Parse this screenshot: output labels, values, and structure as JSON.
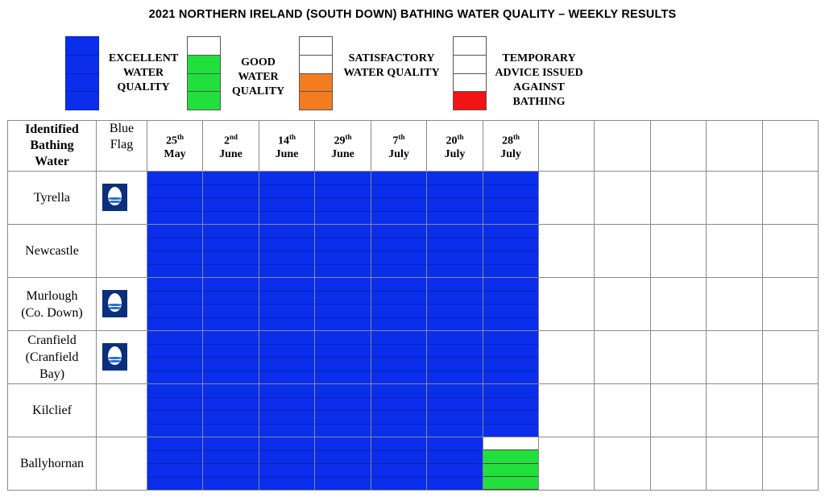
{
  "title": "2021 NORTHERN IRELAND (SOUTH DOWN) BATHING WATER QUALITY – WEEKLY RESULTS",
  "colors": {
    "excellent": "#0a2eea",
    "good": "#22e03c",
    "satisfactory": "#f47c20",
    "advice": "#f21414",
    "empty": "#ffffff"
  },
  "legend": [
    {
      "key": "excellent",
      "lines": [
        "EXCELLENT",
        "WATER",
        "QUALITY"
      ],
      "swatch": [
        "excellent",
        "excellent",
        "excellent",
        "excellent"
      ]
    },
    {
      "key": "good",
      "lines": [
        "GOOD",
        "WATER",
        "QUALITY"
      ],
      "swatch": [
        "empty",
        "good",
        "good",
        "good"
      ]
    },
    {
      "key": "satisfactory",
      "lines": [
        "SATISFACTORY",
        "WATER QUALITY"
      ],
      "swatch": [
        "empty",
        "empty",
        "satisfactory",
        "satisfactory"
      ]
    },
    {
      "key": "advice",
      "lines": [
        "TEMPORARY",
        "ADVICE ISSUED",
        "AGAINST",
        "BATHING"
      ],
      "swatch": [
        "empty",
        "empty",
        "empty",
        "advice"
      ]
    }
  ],
  "table": {
    "header_site": [
      "Identified",
      "Bathing",
      "Water"
    ],
    "header_flag": [
      "Blue",
      "Flag"
    ],
    "weeks": [
      {
        "num": "25",
        "sup": "th",
        "month": "May"
      },
      {
        "num": "2",
        "sup": "nd",
        "month": "June"
      },
      {
        "num": "14",
        "sup": "th",
        "month": "June"
      },
      {
        "num": "29",
        "sup": "th",
        "month": "June"
      },
      {
        "num": "7",
        "sup": "th",
        "month": "July"
      },
      {
        "num": "20",
        "sup": "th",
        "month": "July"
      },
      {
        "num": "28",
        "sup": "th",
        "month": "July"
      },
      {
        "num": "",
        "sup": "",
        "month": ""
      },
      {
        "num": "",
        "sup": "",
        "month": ""
      },
      {
        "num": "",
        "sup": "",
        "month": ""
      },
      {
        "num": "",
        "sup": "",
        "month": ""
      },
      {
        "num": "",
        "sup": "",
        "month": ""
      }
    ],
    "rows": [
      {
        "site": [
          "Tyrella"
        ],
        "blue_flag": true,
        "results": [
          "excellent",
          "excellent",
          "excellent",
          "excellent",
          "excellent",
          "excellent",
          "excellent"
        ]
      },
      {
        "site": [
          "Newcastle"
        ],
        "blue_flag": false,
        "results": [
          "excellent",
          "excellent",
          "excellent",
          "excellent",
          "excellent",
          "excellent",
          "excellent"
        ]
      },
      {
        "site": [
          "Murlough",
          "(Co. Down)"
        ],
        "blue_flag": true,
        "results": [
          "excellent",
          "excellent",
          "excellent",
          "excellent",
          "excellent",
          "excellent",
          "excellent"
        ]
      },
      {
        "site": [
          "Cranfield",
          "(Cranfield",
          "Bay)"
        ],
        "blue_flag": true,
        "results": [
          "excellent",
          "excellent",
          "excellent",
          "excellent",
          "excellent",
          "excellent",
          "excellent"
        ]
      },
      {
        "site": [
          "Kilclief"
        ],
        "blue_flag": false,
        "results": [
          "excellent",
          "excellent",
          "excellent",
          "excellent",
          "excellent",
          "excellent",
          "excellent"
        ]
      },
      {
        "site": [
          "Ballyhornan"
        ],
        "blue_flag": false,
        "results": [
          "excellent",
          "excellent",
          "excellent",
          "excellent",
          "excellent",
          "excellent",
          "good"
        ]
      }
    ]
  }
}
